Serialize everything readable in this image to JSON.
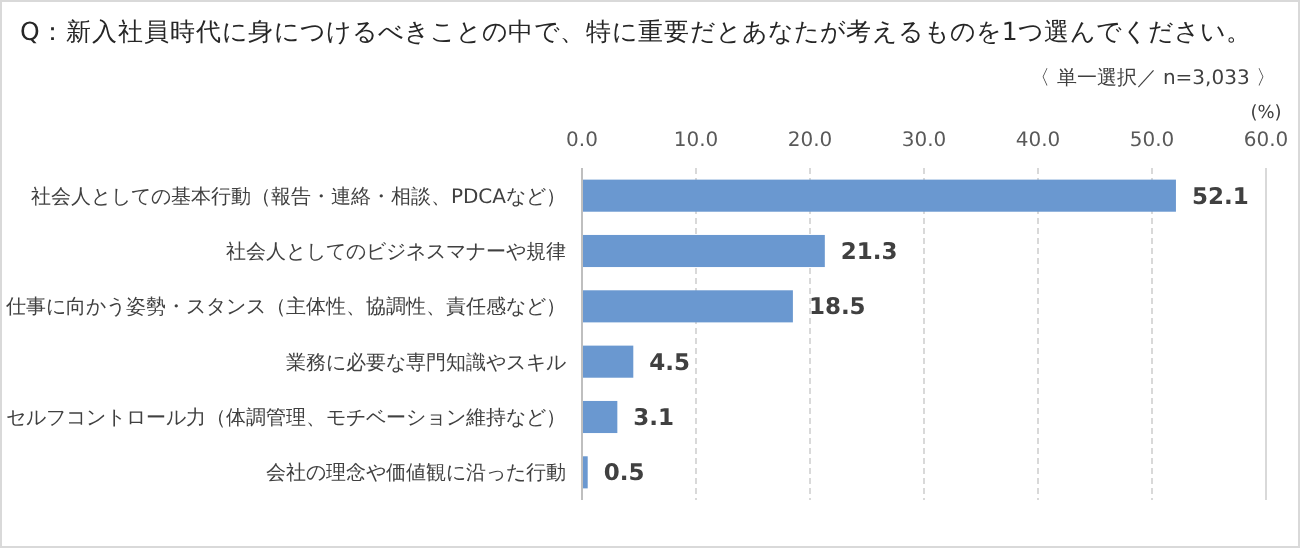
{
  "chart_data": {
    "type": "bar",
    "orientation": "horizontal",
    "title": "Q：新入社員時代に身につけるべきことの中で、特に重要だとあなたが考えるものを1つ選んでください。",
    "subtitle": "〈 単一選択／ n=3,033 〉",
    "xlabel": "(%)",
    "categories": [
      "社会人としての基本行動（報告・連絡・相談、PDCAなど）",
      "社会人としてのビジネスマナーや規律",
      "仕事に向かう姿勢・スタンス（主体性、協調性、責任感など）",
      "業務に必要な専門知識やスキル",
      "セルフコントロール力（体調管理、モチベーション維持など）",
      "会社の理念や価値観に沿った行動"
    ],
    "values": [
      52.1,
      21.3,
      18.5,
      4.5,
      3.1,
      0.5
    ],
    "color": "#6a98d0",
    "xlim": [
      0,
      60
    ],
    "xticks": [
      {
        "value": 0,
        "label": "0.0"
      },
      {
        "value": 10,
        "label": "10.0"
      },
      {
        "value": 20,
        "label": "20.0"
      },
      {
        "value": 30,
        "label": "30.0"
      },
      {
        "value": 40,
        "label": "40.0"
      },
      {
        "value": 50,
        "label": "50.0"
      },
      {
        "value": 60,
        "label": "60.0"
      }
    ],
    "grid": "x",
    "data_labels": true
  }
}
